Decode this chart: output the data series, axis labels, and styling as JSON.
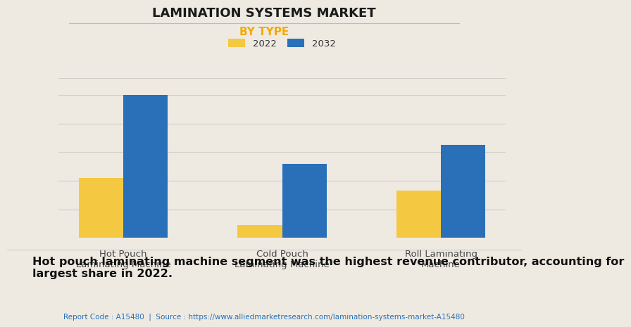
{
  "title": "LAMINATION SYSTEMS MARKET",
  "subtitle": "BY TYPE",
  "categories": [
    "Hot Pouch\nLaminating Machine",
    "Cold Pouch\nLaminating Machine",
    "Roll Laminating\nMachine"
  ],
  "values_2022": [
    0.42,
    0.09,
    0.33
  ],
  "values_2032": [
    1.0,
    0.52,
    0.65
  ],
  "color_2022": "#F5C842",
  "color_2032": "#2970B8",
  "legend_labels": [
    "2022",
    "2032"
  ],
  "subtitle_color": "#F5A800",
  "background_color": "#EEEAE2",
  "title_color": "#1a1a1a",
  "footer_text": "Hot pouch laminating machine segment was the highest revenue contributor, accounting for\nlargest share in 2022.",
  "source_text": "Report Code : A15480  |  Source : https://www.alliedmarketresearch.com/lamination-systems-market-A15480",
  "ylim": [
    0,
    1.12
  ],
  "bar_width": 0.28,
  "grid_color": "#d0cdc8",
  "title_fontsize": 13,
  "subtitle_fontsize": 11,
  "tick_fontsize": 9.5,
  "legend_fontsize": 9.5,
  "footer_fontsize": 11.5,
  "source_fontsize": 7.5
}
